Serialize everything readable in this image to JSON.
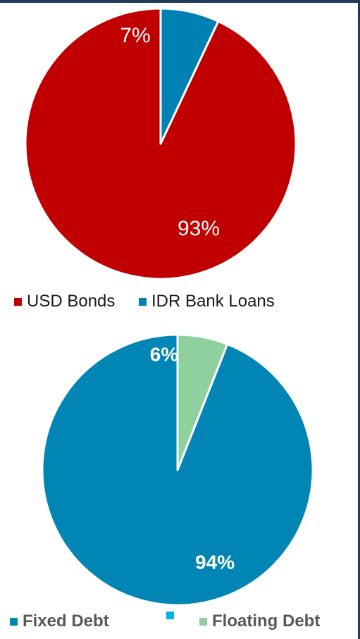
{
  "chart_data": [
    {
      "type": "pie",
      "series": [
        {
          "label": "USD Bonds",
          "value": 93,
          "color": "#c00000"
        },
        {
          "label": "IDR Bank Loans",
          "value": 7,
          "color": "#0081b4"
        }
      ],
      "data_labels": [
        "93%",
        "7%"
      ],
      "legend": "bottom"
    },
    {
      "type": "pie",
      "series": [
        {
          "label": "Fixed Debt",
          "value": 94,
          "color": "#0085b5"
        },
        {
          "label": "",
          "value": 0,
          "color": "#00b0f0"
        },
        {
          "label": "Floating Debt",
          "value": 6,
          "color": "#8fd19e"
        }
      ],
      "data_labels": [
        "94%",
        "",
        "6%"
      ],
      "legend": "bottom"
    }
  ]
}
